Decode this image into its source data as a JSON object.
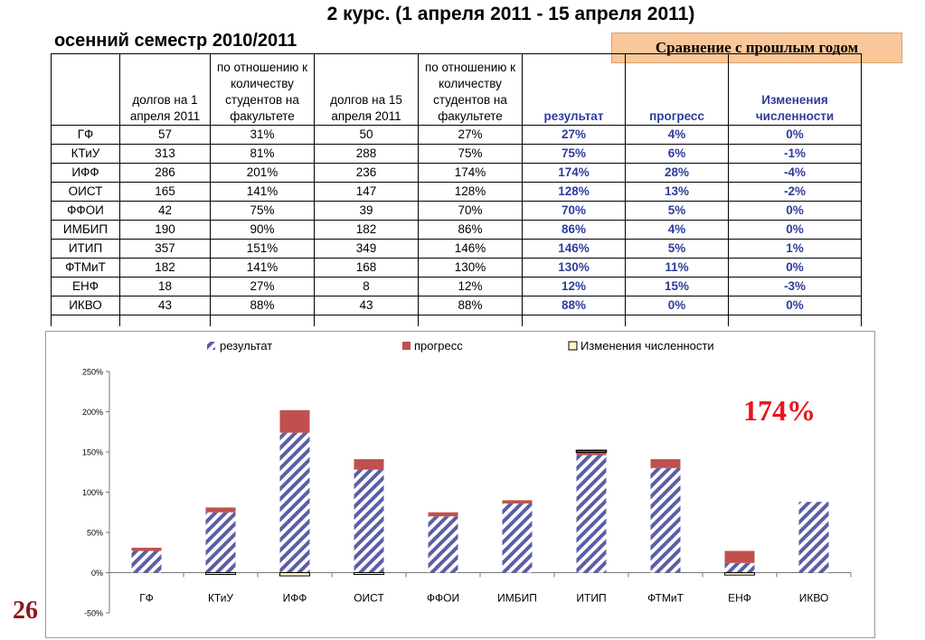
{
  "title": "2 курс.  (1 апреля 2011  -  15 апреля 2011)",
  "semester": "осенний семестр 2010/2011",
  "compare_button": "Сравнение с прошлым годом",
  "page_number": "26",
  "highlight_value": "174%",
  "colors": {
    "header_blue": "#2e3d9b",
    "result_hatch": "#5b5ea6",
    "progress": "#c0504d",
    "population": "#fff5c0",
    "compare_bg": "#f9c799",
    "highlight": "#e8141e",
    "page_number": "#8b1a1a"
  },
  "table": {
    "headers": [
      "",
      "долгов на 1 апреля 2011",
      "по отношению к количеству студентов на факультете",
      "долгов на 15 апреля 2011",
      "по отношению к количеству студентов на факультете",
      "результат",
      "прогресс",
      "Изменения численности"
    ],
    "rows": [
      [
        "ГФ",
        "57",
        "31%",
        "50",
        "27%",
        "27%",
        "4%",
        "0%"
      ],
      [
        "КТиУ",
        "313",
        "81%",
        "288",
        "75%",
        "75%",
        "6%",
        "-1%"
      ],
      [
        "ИФФ",
        "286",
        "201%",
        "236",
        "174%",
        "174%",
        "28%",
        "-4%"
      ],
      [
        "ОИСТ",
        "165",
        "141%",
        "147",
        "128%",
        "128%",
        "13%",
        "-2%"
      ],
      [
        "ФФОИ",
        "42",
        "75%",
        "39",
        "70%",
        "70%",
        "5%",
        "0%"
      ],
      [
        "ИМБИП",
        "190",
        "90%",
        "182",
        "86%",
        "86%",
        "4%",
        "0%"
      ],
      [
        "ИТИП",
        "357",
        "151%",
        "349",
        "146%",
        "146%",
        "5%",
        "1%"
      ],
      [
        "ФТМиТ",
        "182",
        "141%",
        "168",
        "130%",
        "130%",
        "11%",
        "0%"
      ],
      [
        "ЕНФ",
        "18",
        "27%",
        "8",
        "12%",
        "12%",
        "15%",
        "-3%"
      ],
      [
        "ИКВО",
        "43",
        "88%",
        "43",
        "88%",
        "88%",
        "0%",
        "0%"
      ]
    ]
  },
  "chart_data": {
    "type": "bar",
    "stacked": true,
    "categories": [
      "ГФ",
      "КТиУ",
      "ИФФ",
      "ОИСТ",
      "ФФОИ",
      "ИМБИП",
      "ИТИП",
      "ФТМиТ",
      "ЕНФ",
      "ИКВО"
    ],
    "series": [
      {
        "name": "результат",
        "values": [
          27,
          75,
          174,
          128,
          70,
          86,
          146,
          130,
          12,
          88
        ],
        "style": "hatched"
      },
      {
        "name": "прогресс",
        "values": [
          4,
          6,
          28,
          13,
          5,
          4,
          5,
          11,
          15,
          0
        ]
      },
      {
        "name": "Изменения численности",
        "values": [
          0,
          -1,
          -4,
          -2,
          0,
          0,
          1,
          0,
          -3,
          0
        ]
      }
    ],
    "y_ticks": [
      "250%",
      "200%",
      "150%",
      "100%",
      "50%",
      "0%",
      "-50%"
    ],
    "ylim": [
      -50,
      250
    ],
    "value_unit": "%",
    "legend_position": "top",
    "grid": false
  }
}
